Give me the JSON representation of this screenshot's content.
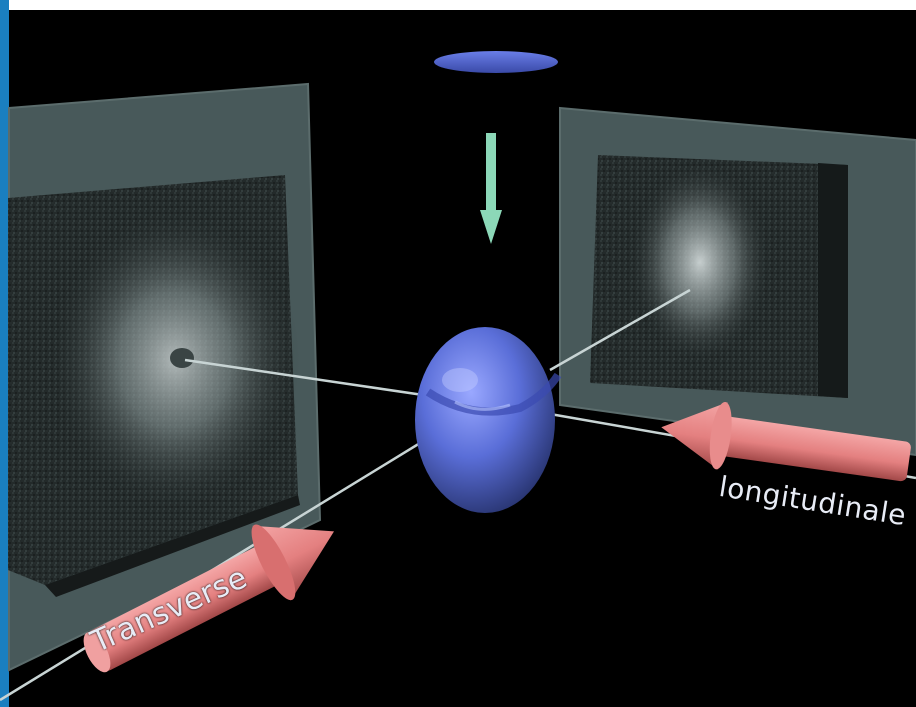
{
  "diagram": {
    "labels": {
      "transverse": "Transverse",
      "longitudinal": "longitudinale"
    },
    "colors": {
      "background": "#000000",
      "panel": "#4a5c5c",
      "detector": "#222828",
      "beam": "#e48080",
      "sample": "#5a6ed8",
      "incident_arrow": "#8cd8b8",
      "source_disc": "#4a5ec8",
      "accent_bar": "#1a7fc0"
    },
    "icons": [
      "sample-sphere",
      "source-disc",
      "incident-arrow",
      "transverse-beam-arrow",
      "longitudinal-beam-arrow"
    ]
  }
}
